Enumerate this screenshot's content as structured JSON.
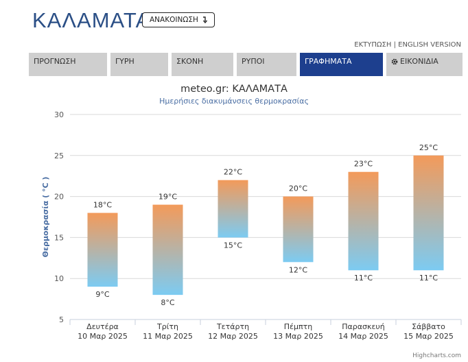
{
  "header": {
    "city": "ΚΑΛΑΜΑΤΑ",
    "announce_label": "ΑΝΑΚΟΙΝΩΣΗ",
    "print_label": "ΕΚΤΥΠΩΣΗ",
    "separator": "|",
    "english_label": "ENGLISH VERSION"
  },
  "tabs": [
    {
      "label": "ΠΡΟΓΝΩΣΗ",
      "active": false
    },
    {
      "label": "ΓΥΡΗ",
      "active": false
    },
    {
      "label": "ΣΚΟΝΗ",
      "active": false
    },
    {
      "label": "ΡΥΠΟΙ",
      "active": false
    },
    {
      "label": "ΓΡΑΦΗΜΑΤΑ",
      "active": true
    },
    {
      "label": "ΕΙΚΟΝΙΔΙΑ",
      "active": false
    }
  ],
  "chart_data": {
    "type": "columnrange",
    "title": "meteo.gr: ΚΑΛΑΜΑΤΑ",
    "subtitle": "Ημερήσιες διακυμάνσεις θερμοκρασίας",
    "ylabel": "Θερμοκρασία ( °C )",
    "ylim": [
      5,
      30
    ],
    "yticks": [
      5,
      10,
      15,
      20,
      25,
      30
    ],
    "unit": "°C",
    "categories": [
      {
        "day": "Δευτέρα",
        "date": "10 Μαρ 2025"
      },
      {
        "day": "Τρίτη",
        "date": "11 Μαρ 2025"
      },
      {
        "day": "Τετάρτη",
        "date": "12 Μαρ 2025"
      },
      {
        "day": "Πέμπτη",
        "date": "13 Μαρ 2025"
      },
      {
        "day": "Παρασκευή",
        "date": "14 Μαρ 2025"
      },
      {
        "day": "Σάββατο",
        "date": "15 Μαρ 2025"
      }
    ],
    "min": [
      9,
      8,
      15,
      12,
      11,
      11
    ],
    "max": [
      18,
      19,
      22,
      20,
      23,
      25
    ],
    "colors": {
      "high": "#f39a5a",
      "low": "#7ccbf2"
    },
    "grid": true
  },
  "credits": "Highcharts.com"
}
